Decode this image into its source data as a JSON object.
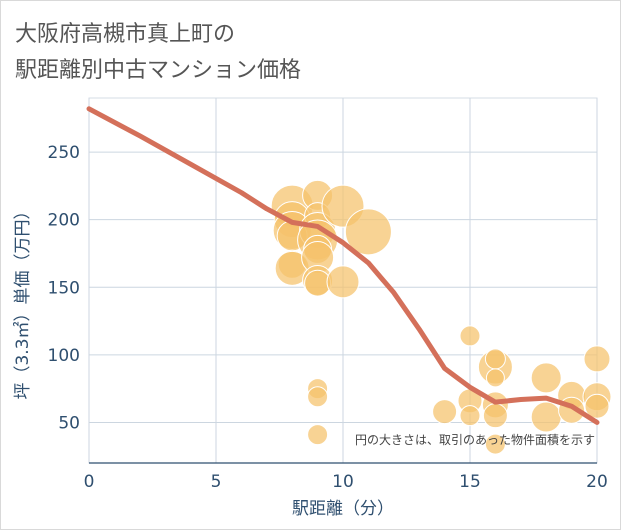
{
  "title_lines": [
    "大阪府高槻市真上町の",
    "駅距離別中古マンション価格"
  ],
  "chart_data": {
    "type": "scatter",
    "title": "大阪府高槻市真上町の駅距離別中古マンション価格",
    "xlabel": "駅距離（分）",
    "ylabel": "坪（3.3㎡）単価（万円）",
    "xlim": [
      0,
      20
    ],
    "ylim": [
      20,
      290
    ],
    "xticks": [
      0,
      5,
      10,
      15,
      20
    ],
    "yticks": [
      50,
      100,
      150,
      200,
      250
    ],
    "grid": true,
    "annotation": "円の大きさは、取引のあった物件面積を示す",
    "colors": {
      "bubble": "#f5c26b",
      "line": "#d4705a"
    },
    "scatter": [
      {
        "x": 8,
        "y": 210,
        "s": 1.6
      },
      {
        "x": 8,
        "y": 200,
        "s": 1.3
      },
      {
        "x": 8,
        "y": 192,
        "s": 1.4
      },
      {
        "x": 8,
        "y": 188,
        "s": 1.0
      },
      {
        "x": 8,
        "y": 167,
        "s": 0.9
      },
      {
        "x": 8,
        "y": 164,
        "s": 1.2
      },
      {
        "x": 9,
        "y": 218,
        "s": 1.0
      },
      {
        "x": 9,
        "y": 203,
        "s": 0.8
      },
      {
        "x": 9,
        "y": 192,
        "s": 1.3
      },
      {
        "x": 9,
        "y": 185,
        "s": 1.5
      },
      {
        "x": 9,
        "y": 178,
        "s": 0.9
      },
      {
        "x": 9,
        "y": 172,
        "s": 1.1
      },
      {
        "x": 9,
        "y": 155,
        "s": 1.0
      },
      {
        "x": 9,
        "y": 153,
        "s": 0.8
      },
      {
        "x": 9,
        "y": 75,
        "s": 0.5
      },
      {
        "x": 9,
        "y": 69,
        "s": 0.5
      },
      {
        "x": 9,
        "y": 41,
        "s": 0.5
      },
      {
        "x": 10,
        "y": 210,
        "s": 1.6
      },
      {
        "x": 10,
        "y": 154,
        "s": 1.1
      },
      {
        "x": 11,
        "y": 191,
        "s": 1.8
      },
      {
        "x": 14,
        "y": 58,
        "s": 0.7
      },
      {
        "x": 15,
        "y": 114,
        "s": 0.5
      },
      {
        "x": 15,
        "y": 66,
        "s": 0.7
      },
      {
        "x": 15,
        "y": 55,
        "s": 0.5
      },
      {
        "x": 16,
        "y": 91,
        "s": 1.2
      },
      {
        "x": 16,
        "y": 97,
        "s": 0.5
      },
      {
        "x": 16,
        "y": 83,
        "s": 0.4
      },
      {
        "x": 16,
        "y": 63,
        "s": 0.8
      },
      {
        "x": 16,
        "y": 55,
        "s": 0.7
      },
      {
        "x": 16,
        "y": 34,
        "s": 0.5
      },
      {
        "x": 18,
        "y": 83,
        "s": 1.0
      },
      {
        "x": 18,
        "y": 54,
        "s": 1.0
      },
      {
        "x": 19,
        "y": 70,
        "s": 0.9
      },
      {
        "x": 19,
        "y": 59,
        "s": 0.8
      },
      {
        "x": 20,
        "y": 97,
        "s": 0.8
      },
      {
        "x": 20,
        "y": 69,
        "s": 0.9
      },
      {
        "x": 20,
        "y": 62,
        "s": 0.7
      }
    ],
    "trend_line": {
      "x": [
        0,
        2,
        4,
        6,
        7,
        8,
        9,
        10,
        11,
        12,
        13,
        14,
        15,
        16,
        17,
        18,
        19,
        20
      ],
      "y": [
        282,
        262,
        241,
        220,
        208,
        198,
        195,
        183,
        168,
        146,
        119,
        90,
        76,
        65,
        67,
        68,
        62,
        50
      ]
    }
  }
}
